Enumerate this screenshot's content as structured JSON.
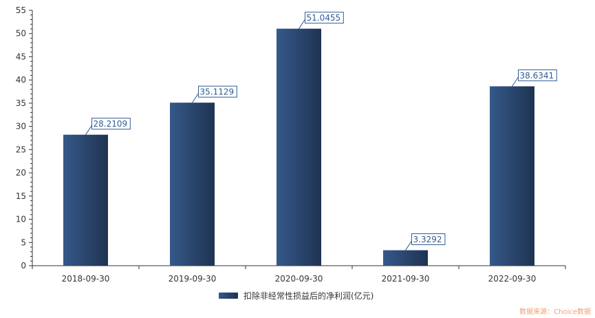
{
  "chart_data": {
    "type": "bar",
    "categories": [
      "2018-09-30",
      "2019-09-30",
      "2020-09-30",
      "2021-09-30",
      "2022-09-30"
    ],
    "series": [
      {
        "name": "扣除非经常性损益后的净利润(亿元)",
        "values": [
          28.2109,
          35.1129,
          51.0455,
          3.3292,
          38.6341
        ]
      }
    ],
    "data_labels": [
      "28.2109",
      "35.1129",
      "51.0455",
      "3.3292",
      "38.6341"
    ],
    "yticks": [
      0,
      5,
      10,
      15,
      20,
      25,
      30,
      35,
      40,
      45,
      50,
      55
    ],
    "ylim": [
      0,
      55
    ],
    "grid": false,
    "legend_position": "bottom",
    "colors": {
      "bar_light": "#35598a",
      "bar_dark": "#1f3352",
      "label": "#2f5b94",
      "axis": "#333333"
    }
  },
  "watermark": "数据来源：Choice数据"
}
